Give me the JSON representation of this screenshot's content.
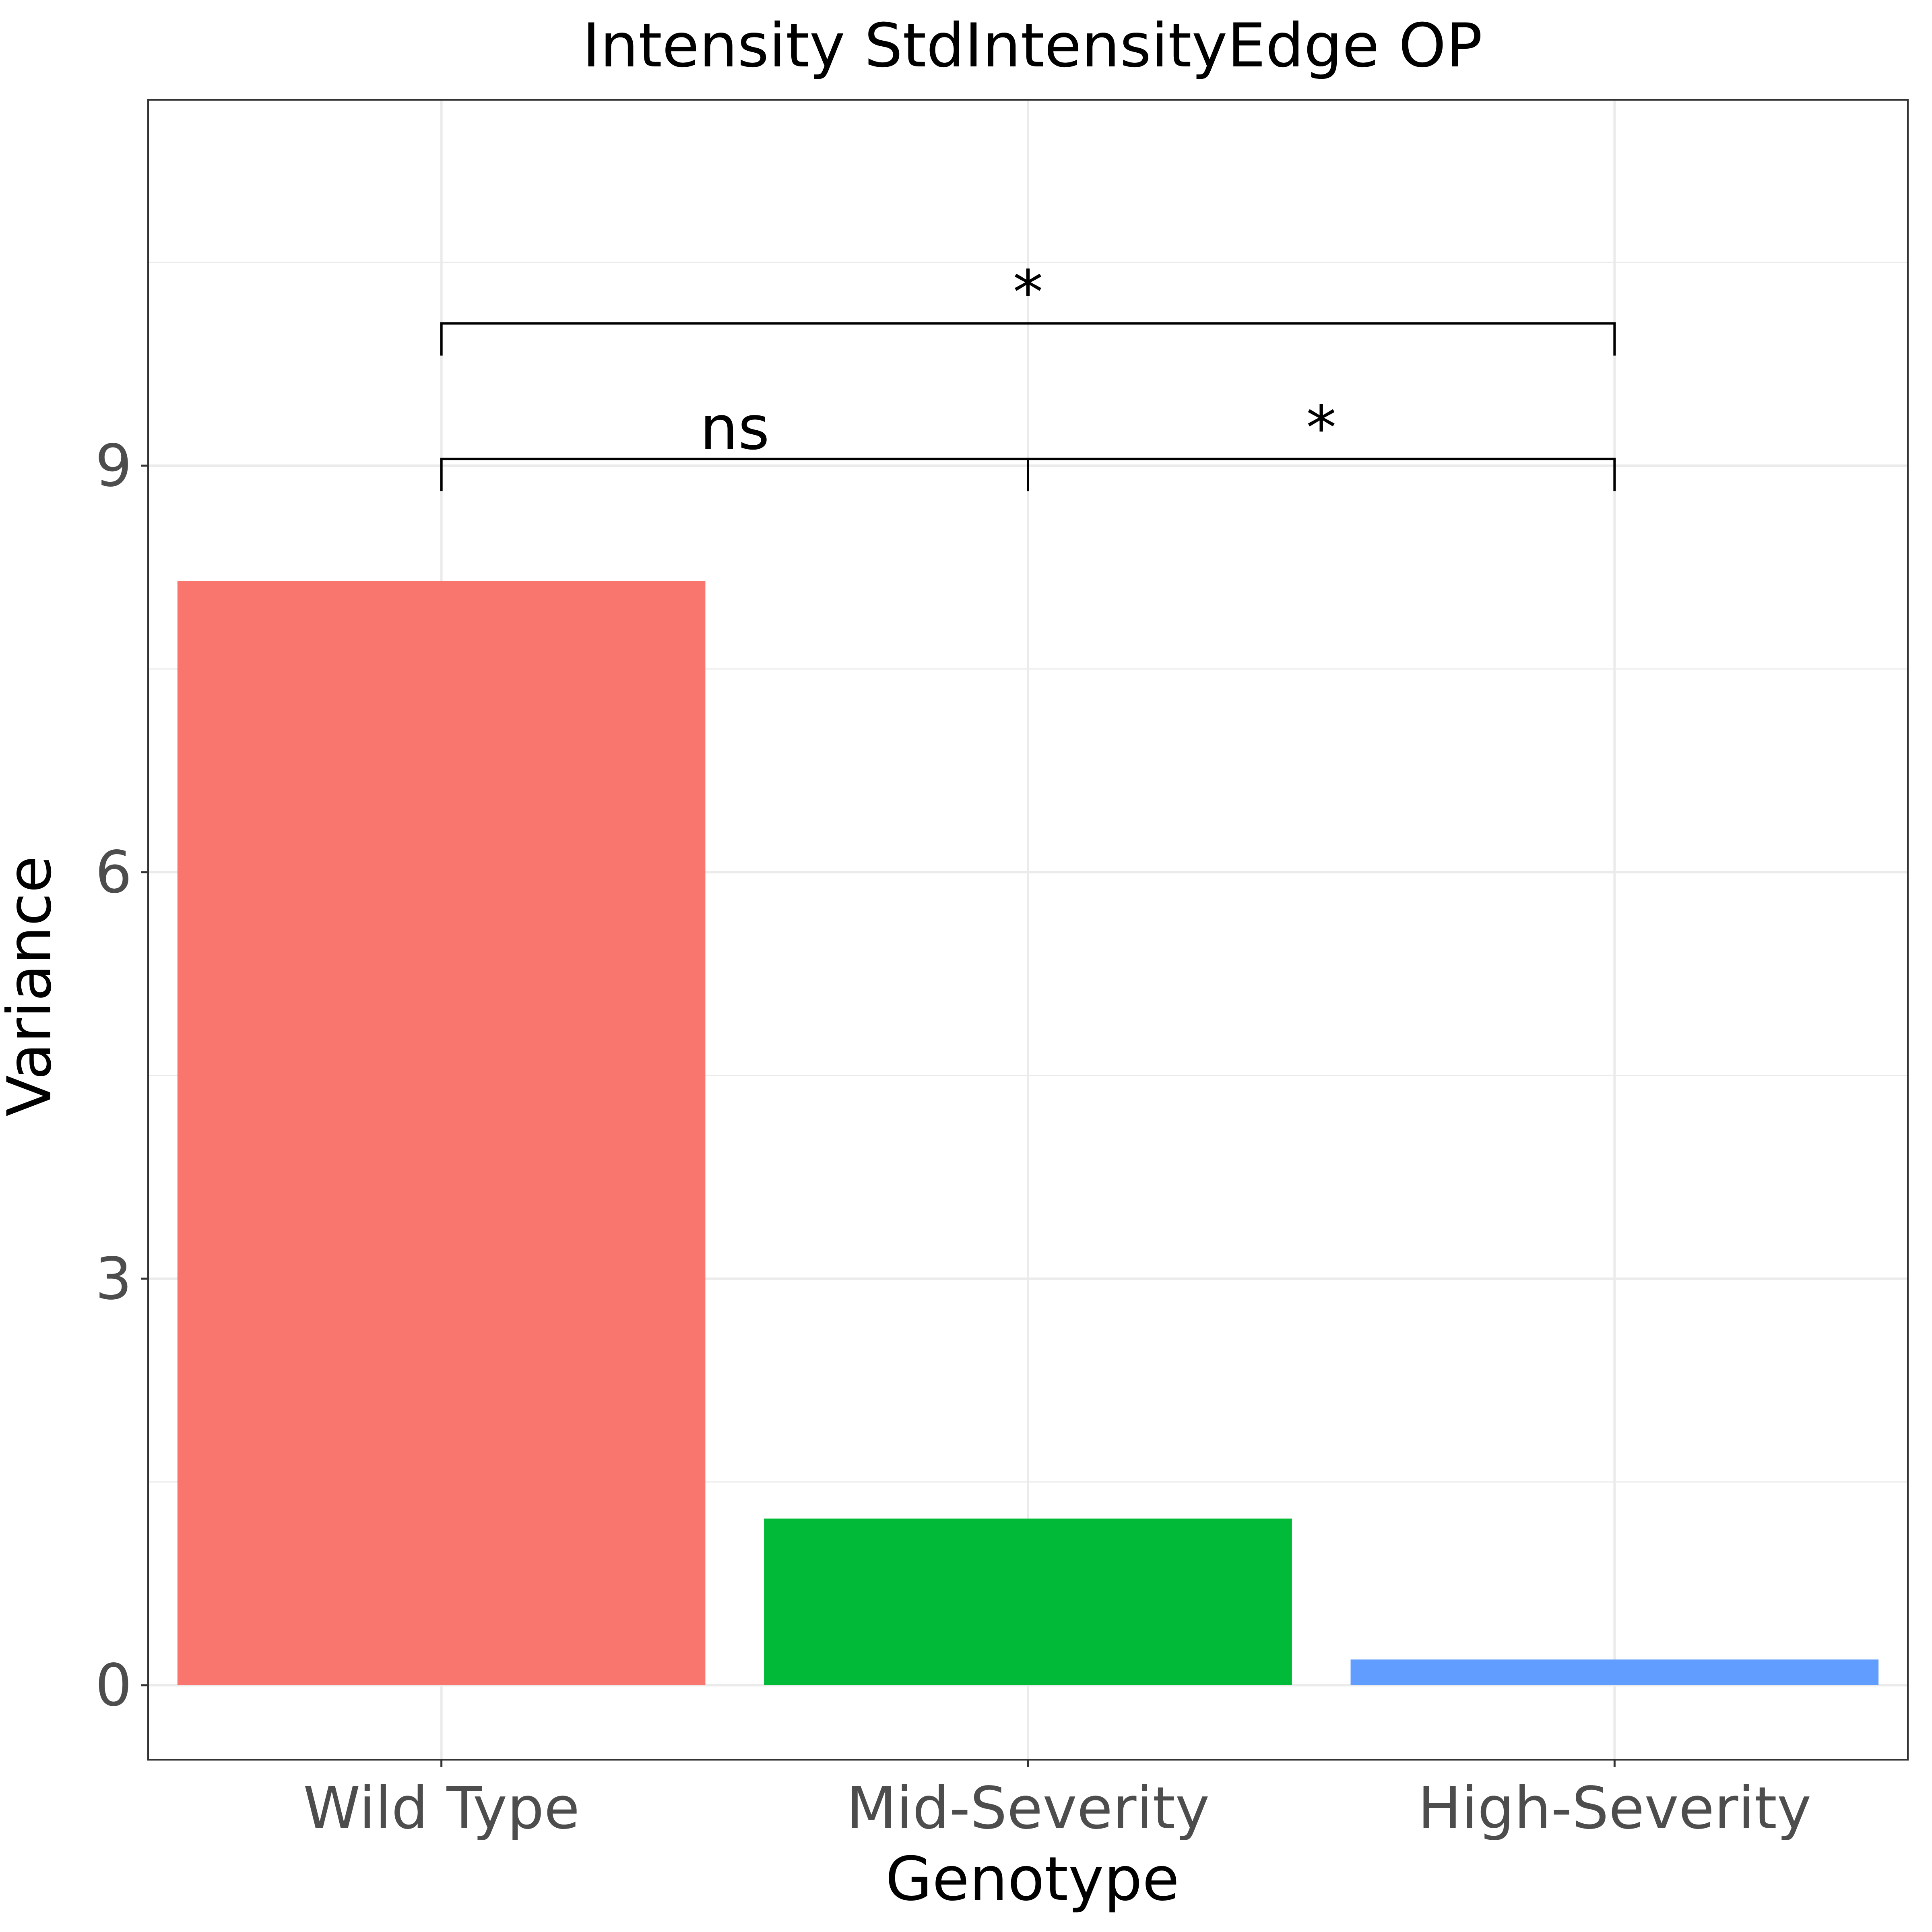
{
  "chart_data": {
    "type": "bar",
    "title": "Intensity StdIntensityEdge OP",
    "xlabel": "Genotype",
    "ylabel": "Variance",
    "categories": [
      "Wild Type",
      "Mid-Severity",
      "High-Severity"
    ],
    "values": [
      8.15,
      1.23,
      0.19
    ],
    "colors": [
      "#F8766D",
      "#00BA38",
      "#619CFF"
    ],
    "ylim": [
      -0.55,
      11.7
    ],
    "yticks": [
      0,
      3,
      6,
      9
    ],
    "ytick_labels": [
      "0",
      "3",
      "6",
      "9"
    ],
    "grid": true,
    "legend": "none",
    "comparisons": [
      {
        "from": "Wild Type",
        "to": "Mid-Severity",
        "label": "ns",
        "y": 9.05
      },
      {
        "from": "Mid-Severity",
        "to": "High-Severity",
        "label": "*",
        "y": 9.05
      },
      {
        "from": "Wild Type",
        "to": "High-Severity",
        "label": "*",
        "y": 10.05
      }
    ]
  }
}
